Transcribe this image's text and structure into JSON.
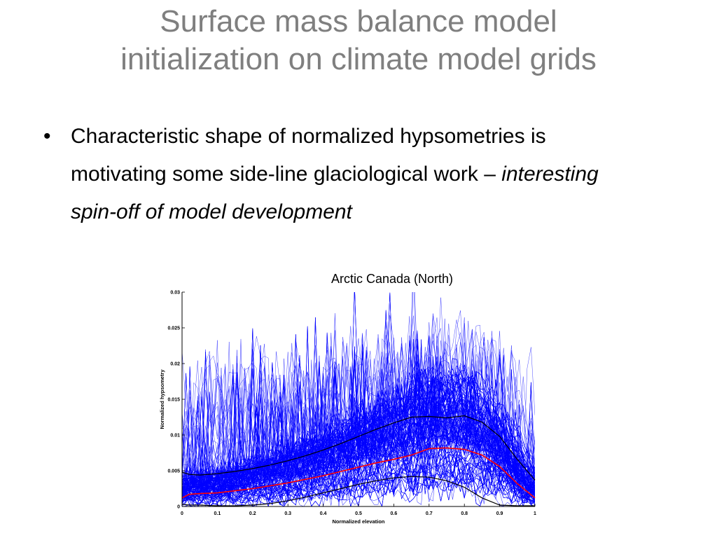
{
  "slide": {
    "title_line1": "Surface mass balance model",
    "title_line2": "initialization on climate model grids",
    "bullet_symbol": "•",
    "bullet_text_plain": "Characteristic shape of normalized hypsometries is motivating some side-line glaciological work – ",
    "bullet_text_italic": "interesting spin-off of model development",
    "chart_caption": "Arctic Canada (North)"
  },
  "colors": {
    "title": "#7f7f7f",
    "individual_curves": "#0000ff",
    "mean_curve": "#ff0000",
    "bound_curves": "#000000"
  },
  "chart_data": {
    "type": "line",
    "title": "Arctic Canada (North)",
    "xlabel": "Normalized elevation",
    "ylabel": "Normalized hypsometry",
    "xlim": [
      0,
      1
    ],
    "ylim": [
      0,
      0.03
    ],
    "xticks": [
      0,
      0.1,
      0.2,
      0.3,
      0.4,
      0.5,
      0.6,
      0.7,
      0.8,
      0.9,
      1
    ],
    "yticks": [
      0,
      0.005,
      0.01,
      0.015,
      0.02,
      0.025,
      0.03
    ],
    "xtick_labels": [
      "0",
      "0.1",
      "0.2",
      "0.3",
      "0.4",
      "0.5",
      "0.6",
      "0.7",
      "0.8",
      "0.9",
      "1"
    ],
    "ytick_labels": [
      "0",
      "0.005",
      "0.01",
      "0.015",
      "0.02",
      "0.025",
      "0.03"
    ],
    "grid": false,
    "legend": "none",
    "x": [
      0,
      0.02,
      0.05,
      0.1,
      0.15,
      0.2,
      0.25,
      0.3,
      0.35,
      0.4,
      0.45,
      0.5,
      0.55,
      0.6,
      0.65,
      0.7,
      0.75,
      0.8,
      0.85,
      0.9,
      0.95,
      1
    ],
    "series": [
      {
        "color": "#000000",
        "values": [
          0.0048,
          0.0045,
          0.0044,
          0.0046,
          0.0049,
          0.0053,
          0.0058,
          0.0064,
          0.0071,
          0.0079,
          0.0088,
          0.0098,
          0.0108,
          0.0117,
          0.0125,
          0.0126,
          0.0124,
          0.0127,
          0.0118,
          0.0098,
          0.0066,
          0.0037
        ]
      },
      {
        "color": "#ff0000",
        "values": [
          0.0012,
          0.0017,
          0.0018,
          0.0019,
          0.0022,
          0.0025,
          0.0029,
          0.0033,
          0.0038,
          0.0043,
          0.0049,
          0.0055,
          0.0061,
          0.0066,
          0.0072,
          0.0081,
          0.0082,
          0.008,
          0.0072,
          0.0056,
          0.0032,
          0.0012
        ]
      },
      {
        "color": "#000000",
        "values": [
          0.0003,
          0.0002,
          0.0002,
          0.0001,
          0.0001,
          0.0002,
          0.0004,
          0.0008,
          0.0013,
          0.0019,
          0.0025,
          0.0031,
          0.0036,
          0.004,
          0.0042,
          0.0041,
          0.0036,
          0.0027,
          0.0012,
          0.0002,
          0.0001,
          0.0001
        ]
      }
    ]
  }
}
